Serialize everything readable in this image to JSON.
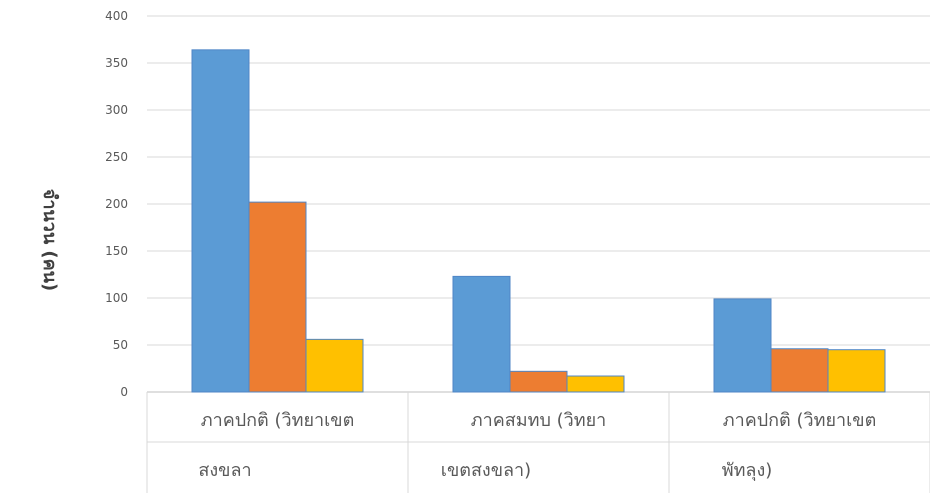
{
  "chart_data": {
    "type": "bar",
    "title": "",
    "xlabel": "",
    "ylabel": "จำนวน (คน)",
    "ylim": [
      0,
      400
    ],
    "yticks": [
      0,
      50,
      100,
      150,
      200,
      250,
      300,
      350,
      400
    ],
    "grid": true,
    "categories": [
      [
        "ภาคปกติ (วิทยาเขต",
        "สงขลา"
      ],
      [
        "ภาคสมทบ (วิทยา",
        "เขตสงขลา)"
      ],
      [
        "ภาคปกติ (วิทยาเขต",
        "พัทลุง)"
      ]
    ],
    "series": [
      {
        "color": "#5b9bd5",
        "values": [
          364,
          123,
          99
        ]
      },
      {
        "color": "#ed7d31",
        "values": [
          202,
          22,
          46
        ]
      },
      {
        "color": "#ffc000",
        "values": [
          56,
          17,
          45
        ]
      }
    ]
  }
}
